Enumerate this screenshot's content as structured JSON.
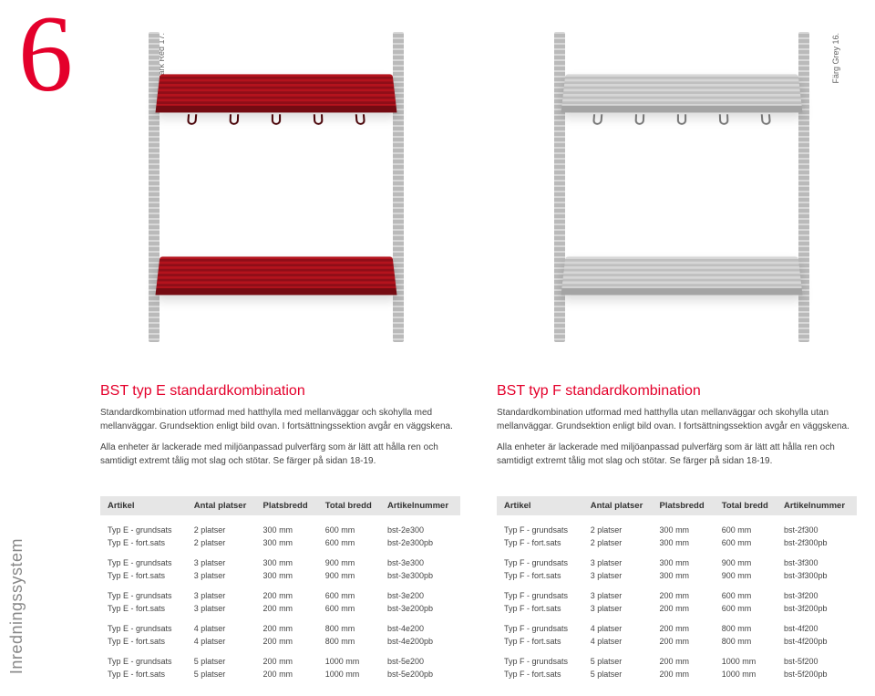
{
  "page_number": "6",
  "sidebar_label": "Inredningssystem",
  "left_image_label": "Färg Dark Red 17.",
  "right_image_label": "Färg Grey 16.",
  "left": {
    "heading_main": "BST typ E ",
    "heading_sub": "standardkombination",
    "para1": "Standardkombination utformad med hatthylla med mellanväggar och skohylla med mellanväggar. Grundsektion enligt bild ovan. I fortsättningssektion avgår en väggskena.",
    "para2": "Alla enheter är lackerade med miljöanpassad pulverfärg som är lätt att hålla ren och samtidigt extremt tålig mot slag och stötar. Se färger på sidan 18-19.",
    "columns": [
      "Artikel",
      "Antal platser",
      "Platsbredd",
      "Total bredd",
      "Artikelnummer"
    ],
    "groups": [
      [
        [
          "Typ E - grundsats",
          "2 platser",
          "300 mm",
          "600 mm",
          "bst-2e300"
        ],
        [
          "Typ E - fort.sats",
          "2 platser",
          "300 mm",
          "600 mm",
          "bst-2e300pb"
        ]
      ],
      [
        [
          "Typ E - grundsats",
          "3 platser",
          "300 mm",
          "900 mm",
          "bst-3e300"
        ],
        [
          "Typ E - fort.sats",
          "3 platser",
          "300 mm",
          "900 mm",
          "bst-3e300pb"
        ]
      ],
      [
        [
          "Typ E - grundsats",
          "3 platser",
          "200 mm",
          "600 mm",
          "bst-3e200"
        ],
        [
          "Typ E - fort.sats",
          "3 platser",
          "200 mm",
          "600 mm",
          "bst-3e200pb"
        ]
      ],
      [
        [
          "Typ E - grundsats",
          "4 platser",
          "200 mm",
          "800 mm",
          "bst-4e200"
        ],
        [
          "Typ E - fort.sats",
          "4 platser",
          "200 mm",
          "800 mm",
          "bst-4e200pb"
        ]
      ],
      [
        [
          "Typ E - grundsats",
          "5 platser",
          "200 mm",
          "1000 mm",
          "bst-5e200"
        ],
        [
          "Typ E - fort.sats",
          "5 platser",
          "200 mm",
          "1000 mm",
          "bst-5e200pb"
        ]
      ]
    ]
  },
  "right": {
    "heading_main": "BST typ F ",
    "heading_sub": "standardkombination",
    "para1": "Standardkombination utformad med hatthylla utan mellanväggar och skohylla utan mellanväggar. Grundsektion enligt bild ovan. I fortsättningssektion avgår en väggskena.",
    "para2": "Alla enheter är lackerade med miljöanpassad pulverfärg som är lätt att hålla ren och samtidigt extremt tålig mot slag och stötar. Se färger på sidan 18-19.",
    "columns": [
      "Artikel",
      "Antal platser",
      "Platsbredd",
      "Total bredd",
      "Artikelnummer"
    ],
    "groups": [
      [
        [
          "Typ F - grundsats",
          "2 platser",
          "300 mm",
          "600 mm",
          "bst-2f300"
        ],
        [
          "Typ F - fort.sats",
          "2 platser",
          "300 mm",
          "600 mm",
          "bst-2f300pb"
        ]
      ],
      [
        [
          "Typ F - grundsats",
          "3 platser",
          "300 mm",
          "900 mm",
          "bst-3f300"
        ],
        [
          "Typ F - fort.sats",
          "3 platser",
          "300 mm",
          "900 mm",
          "bst-3f300pb"
        ]
      ],
      [
        [
          "Typ F - grundsats",
          "3 platser",
          "200 mm",
          "600 mm",
          "bst-3f200"
        ],
        [
          "Typ F - fort.sats",
          "3 platser",
          "200 mm",
          "600 mm",
          "bst-3f200pb"
        ]
      ],
      [
        [
          "Typ F - grundsats",
          "4 platser",
          "200 mm",
          "800 mm",
          "bst-4f200"
        ],
        [
          "Typ F - fort.sats",
          "4 platser",
          "200 mm",
          "800 mm",
          "bst-4f200pb"
        ]
      ],
      [
        [
          "Typ F - grundsats",
          "5 platser",
          "200 mm",
          "1000 mm",
          "bst-5f200"
        ],
        [
          "Typ F - fort.sats",
          "5 platser",
          "200 mm",
          "1000 mm",
          "bst-5f200pb"
        ]
      ]
    ]
  },
  "colors": {
    "accent": "#e4002b",
    "thead_bg": "#e6e6e6",
    "text": "#424242",
    "red_shelf_light": "#b4131d",
    "red_shelf_dark": "#8f0e18",
    "grey_shelf_light": "#d6d6d6",
    "grey_shelf_dark": "#bfbfbf"
  }
}
